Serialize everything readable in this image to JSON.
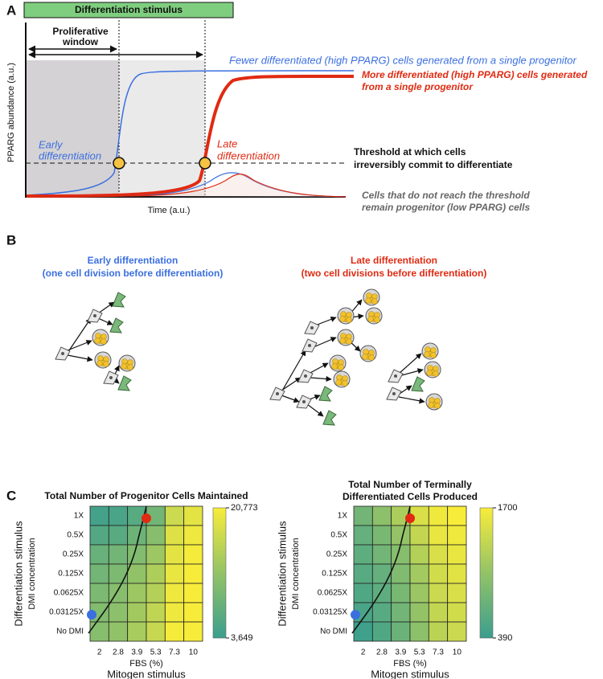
{
  "panel_a": {
    "letter": "A",
    "stimulus_bar": "Differentiation stimulus",
    "window_label": [
      "Proliferative",
      "window"
    ],
    "y_label": "PPARG abundance (a.u.)",
    "x_label": "Time (a.u.)",
    "early_label": [
      "Early",
      "differentiation"
    ],
    "late_label": [
      "Late",
      "differentiation"
    ],
    "fewer_note": "Fewer differentiated (high PPARG) cells generated from a single progenitor",
    "more_note": [
      "More differentiated (high PPARG) cells generated",
      "from a single progenitor"
    ],
    "threshold_note": [
      "Threshold at which cells",
      "irreversibly commit to differentiate"
    ],
    "progenitor_note": [
      "Cells that do not reach the threshold",
      "remain progenitor (low PPARG) cells"
    ]
  },
  "panel_b": {
    "letter": "B",
    "early": {
      "title": "Early differentiation",
      "subtitle": "(one cell division before differentiation)"
    },
    "late": {
      "title": "Late differentiation",
      "subtitle": "(two cell divisions before differentiation)"
    }
  },
  "panel_c": {
    "letter": "C"
  },
  "chart_data": [
    {
      "type": "heatmap",
      "title": [
        "Total Number of Progenitor Cells Maintained"
      ],
      "x": [
        "2",
        "2.8",
        "3.9",
        "5.3",
        "7.3",
        "10"
      ],
      "xlabel": "FBS (%)",
      "xsuperlabel": "Mitogen stimulus",
      "y": [
        "1X",
        "0.5X",
        "0.25X",
        "0.125X",
        "0.0625X",
        "0.03125X",
        "No DMI"
      ],
      "ylabel": "DMI concentration",
      "ysuperlabel": "Differentiation stimulus",
      "values": [
        [
          4500,
          5000,
          6500,
          9000,
          17000,
          19000
        ],
        [
          6000,
          6500,
          8500,
          11000,
          18500,
          20000
        ],
        [
          8000,
          9000,
          10500,
          13000,
          19000,
          20500
        ],
        [
          9000,
          10000,
          12000,
          14500,
          19500,
          20700
        ],
        [
          10000,
          11000,
          13000,
          15000,
          20000,
          20773
        ],
        [
          10500,
          11500,
          13500,
          16000,
          20000,
          20700
        ],
        [
          11000,
          12000,
          14000,
          16500,
          20500,
          20773
        ]
      ],
      "zlim": [
        3649,
        20773
      ],
      "zticks": [
        {
          "value": 3649,
          "label": "3,649"
        },
        {
          "value": 20773,
          "label": "20,773"
        }
      ],
      "colormap": [
        "#3b9e8e",
        "#93c367",
        "#f8ec3a"
      ]
    },
    {
      "type": "heatmap",
      "title": [
        "Total Number of Terminally",
        "Differentiated Cells Produced"
      ],
      "x": [
        "2",
        "2.8",
        "3.9",
        "5.3",
        "7.3",
        "10"
      ],
      "xlabel": "FBS (%)",
      "xsuperlabel": "Mitogen stimulus",
      "y": [
        "1X",
        "0.5X",
        "0.25X",
        "0.125X",
        "0.0625X",
        "0.03125X",
        "No DMI"
      ],
      "ylabel": "DMI concentration",
      "ysuperlabel": "Differentiation stimulus",
      "values": [
        [
          800,
          1000,
          1200,
          1500,
          1650,
          1700
        ],
        [
          700,
          850,
          1050,
          1350,
          1600,
          1650
        ],
        [
          650,
          800,
          950,
          1250,
          1500,
          1600
        ],
        [
          600,
          700,
          900,
          1150,
          1450,
          1550
        ],
        [
          550,
          650,
          850,
          1100,
          1400,
          1500
        ],
        [
          500,
          600,
          800,
          1050,
          1350,
          1450
        ],
        [
          420,
          550,
          750,
          1000,
          1300,
          1400
        ]
      ],
      "zlim": [
        390,
        1700
      ],
      "zticks": [
        390,
        1700
      ],
      "colormap": [
        "#3b9e8e",
        "#93c367",
        "#f8ec3a"
      ]
    }
  ]
}
